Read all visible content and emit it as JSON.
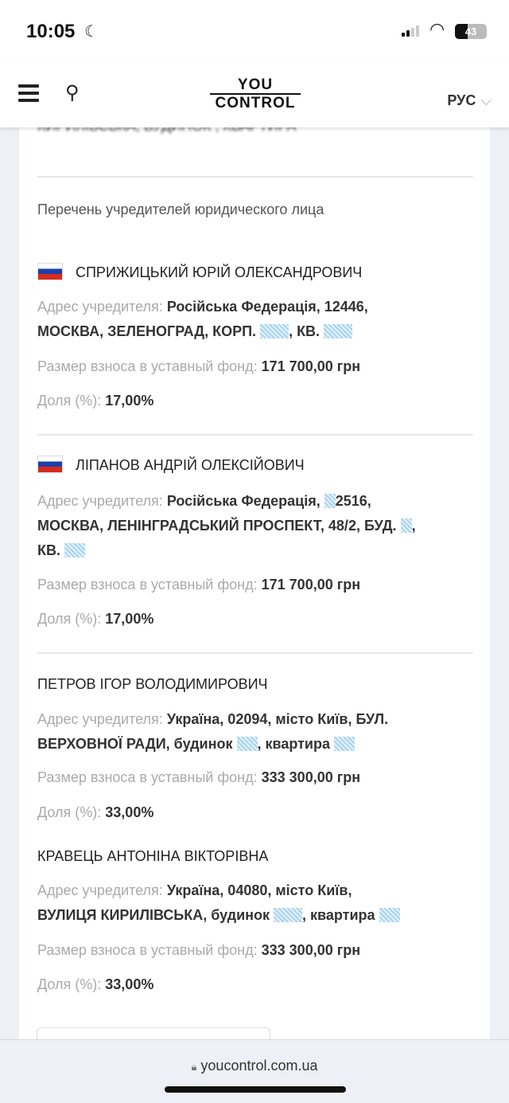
{
  "status_bar": {
    "time": "10:05",
    "battery": "43"
  },
  "header": {
    "logo_top": "YOU",
    "logo_bottom": "CONTROL",
    "language": "РУС"
  },
  "content": {
    "cut_text": "КИРИЛІВСЬКА, БУДИНОК , КВАРТИРА",
    "section_title": "Перечень учредителей юридического лица",
    "labels": {
      "address": "Адрес учредителя:",
      "contribution": "Размер взноса в уставный фонд:",
      "share": "Доля (%):"
    },
    "founders": [
      {
        "name": "СПРИЖИЦЬКИЙ ЮРІЙ ОЛЕКСАНДРОВИЧ",
        "flag": "russia",
        "address": [
          "Російська Федерація, 12446,",
          "МОСКВА, ЗЕЛЕНОГРАД, КОРП. ",
          ", КВ. "
        ],
        "contribution": "171 700,00 грн",
        "share": "17,00%"
      },
      {
        "name": "ЛІПАНОВ АНДРІЙ ОЛЕКСІЙОВИЧ",
        "flag": "russia",
        "address": [
          "Російська Федерація, ",
          "2516,",
          "МОСКВА, ЛЕНІНГРАДСЬКИЙ ПРОСПЕКТ, 48/2, БУД. ",
          ",",
          "КВ. "
        ],
        "contribution": "171 700,00 грн",
        "share": "17,00%"
      },
      {
        "name": "ПЕТРОВ ІГОР ВОЛОДИМИРОВИЧ",
        "address": [
          "Україна, 02094, місто Київ, БУЛ.",
          "ВЕРХОВНОЇ РАДИ, будинок ",
          ", квартира "
        ],
        "contribution": "333 300,00 грн",
        "share": "33,00%"
      },
      {
        "name": "КРАВЕЦЬ АНТОНІНА ВІКТОРІВНА",
        "address": [
          "Україна, 04080, місто Київ,",
          "ВУЛИЦЯ КИРИЛІВСЬКА, будинок ",
          ", квартира "
        ],
        "contribution": "333 300,00 грн",
        "share": "33,00%"
      }
    ]
  },
  "browser": {
    "url": "youcontrol.com.ua"
  }
}
